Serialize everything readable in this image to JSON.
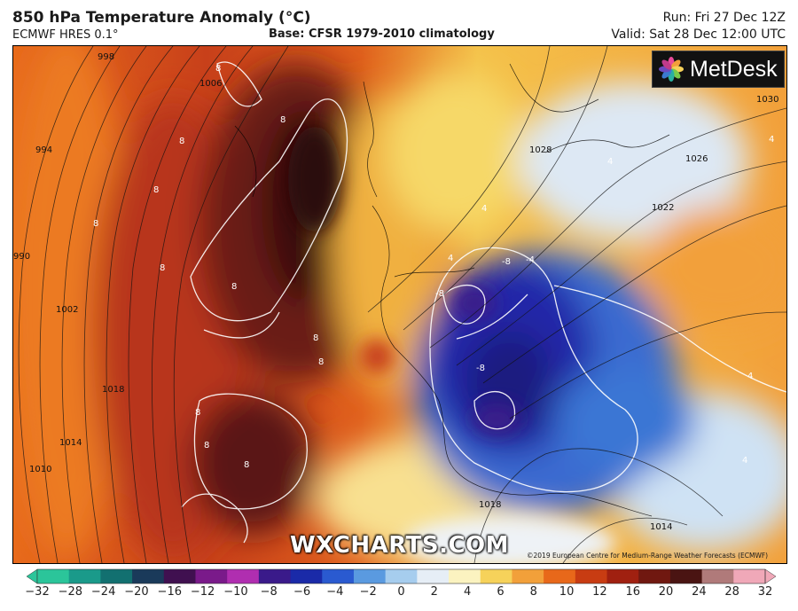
{
  "header": {
    "title": "850 hPa Temperature Anomaly (°C)",
    "model": "ECMWF HRES 0.1°",
    "base": "Base: CFSR 1979-2010 climatology",
    "run": "Run: Fri 27 Dec 12Z",
    "valid": "Valid: Sat 28 Dec 12:00 UTC"
  },
  "logo": {
    "text": "MetDesk",
    "icon": "metdesk-pinwheel-icon"
  },
  "watermark": "WXCHARTS.COM",
  "credit": "©2019 European Centre for Medium-Range Weather Forecasts (ECMWF)",
  "isobar_labels": [
    "998",
    "1006",
    "994",
    "990",
    "1002",
    "1018",
    "1014",
    "1010",
    "1030",
    "1026",
    "1022",
    "1028",
    "1018",
    "1014"
  ],
  "anomaly_labels": [
    "8",
    "8",
    "8",
    "8",
    "8",
    "8",
    "8",
    "8",
    "8",
    "8",
    "8",
    "8",
    "4",
    "4",
    "4",
    "-4",
    "-8",
    "-8",
    "-8",
    "4",
    "4",
    "4"
  ],
  "colorbar": {
    "ticks": [
      "−32",
      "−28",
      "−24",
      "−20",
      "−16",
      "−12",
      "−10",
      "−8",
      "−6",
      "−4",
      "−2",
      "0",
      "2",
      "4",
      "6",
      "8",
      "10",
      "12",
      "16",
      "20",
      "24",
      "28",
      "32"
    ],
    "colors": [
      "#2bc59a",
      "#1a9a8a",
      "#127070",
      "#1a3a5a",
      "#401050",
      "#7a1a8a",
      "#b02eb0",
      "#3a1a8a",
      "#1a2aa8",
      "#2a5ad0",
      "#5a9ae0",
      "#a6cdee",
      "#e6eef6",
      "#fbf3c0",
      "#f6d25a",
      "#f2a03a",
      "#e8681a",
      "#c83c12",
      "#a02010",
      "#701810",
      "#4a1412",
      "#b07a7a",
      "#f0a8b8"
    ]
  }
}
